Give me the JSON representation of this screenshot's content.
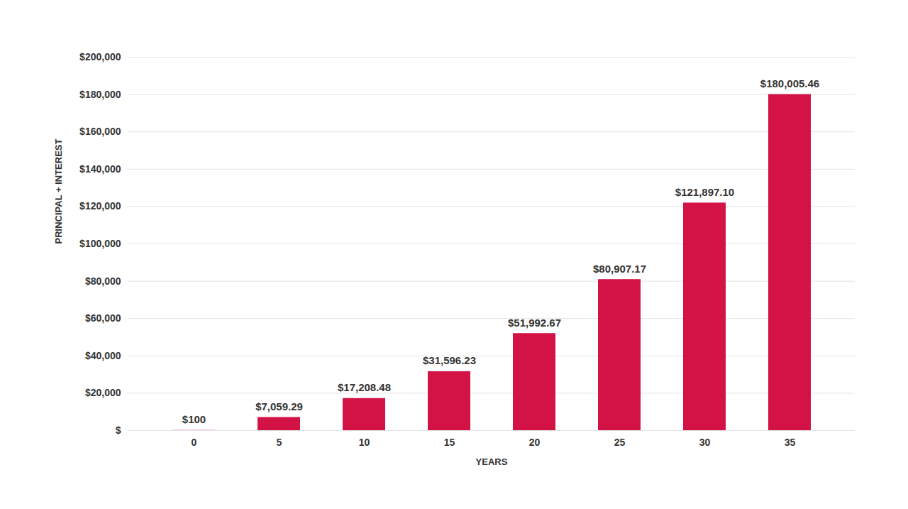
{
  "chart_data": {
    "type": "bar",
    "x_label": "YEARS",
    "y_label": "PRINCIPAL + INTEREST",
    "categories": [
      "0",
      "5",
      "10",
      "15",
      "20",
      "25",
      "30",
      "35"
    ],
    "values": [
      100,
      7059.29,
      17208.48,
      31596.23,
      51992.67,
      80907.17,
      121897.1,
      180005.46
    ],
    "value_labels": [
      "$100",
      "$7,059.29",
      "$17,208.48",
      "$31,596.23",
      "$51,992.67",
      "$80,907.17",
      "$121,897.10",
      "$180,005.46"
    ],
    "data_labels": true,
    "color": "#d31245",
    "ylim": [
      0,
      200000
    ],
    "yticks": [
      {
        "value": 0,
        "label": "$"
      },
      {
        "value": 20000,
        "label": "$20,000"
      },
      {
        "value": 40000,
        "label": "$40,000"
      },
      {
        "value": 60000,
        "label": "$60,000"
      },
      {
        "value": 80000,
        "label": "$80,000"
      },
      {
        "value": 100000,
        "label": "$100,000"
      },
      {
        "value": 120000,
        "label": "$120,000"
      },
      {
        "value": 140000,
        "label": "$140,000"
      },
      {
        "value": 160000,
        "label": "$160,000"
      },
      {
        "value": 180000,
        "label": "$180,000"
      },
      {
        "value": 200000,
        "label": "$200,000"
      }
    ],
    "grid": true
  }
}
